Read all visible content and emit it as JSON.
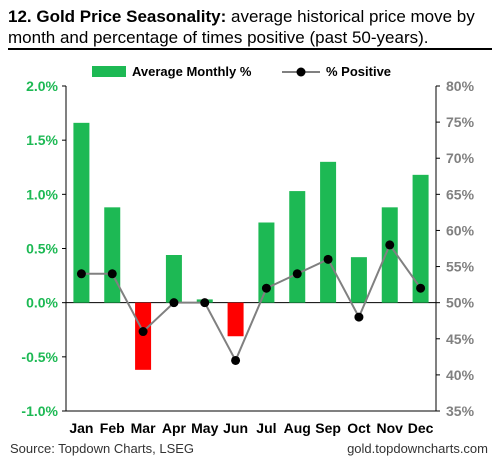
{
  "header": {
    "title_bold": "12. Gold Price Seasonality:",
    "title_rest": " average historical price move by month and percentage of times positive (past 50-years)."
  },
  "footer": {
    "source": "Source: Topdown Charts, LSEG",
    "website": "gold.topdowncharts.com"
  },
  "colors": {
    "positive_bar": "#1db954",
    "negative_bar": "#ff0000",
    "left_axis_text": "#1db954",
    "right_axis_text": "#808080",
    "line": "#808080",
    "marker": "#000000"
  },
  "chart_data": {
    "type": "bar",
    "categories": [
      "Jan",
      "Feb",
      "Mar",
      "Apr",
      "May",
      "Jun",
      "Jul",
      "Aug",
      "Sep",
      "Oct",
      "Nov",
      "Dec"
    ],
    "series": [
      {
        "name": "Average Monthly %",
        "type": "bar",
        "axis": "left",
        "values": [
          1.66,
          0.88,
          -0.62,
          0.44,
          0.03,
          -0.31,
          0.74,
          1.03,
          1.3,
          0.42,
          0.88,
          1.18
        ]
      },
      {
        "name": "% Positive",
        "type": "line",
        "axis": "right",
        "values": [
          54,
          54,
          46,
          50,
          50,
          42,
          52,
          54,
          56,
          48,
          58,
          52
        ]
      }
    ],
    "y_left": {
      "min": -1.0,
      "max": 2.0,
      "ticks": [
        "-1.0%",
        "-0.5%",
        "0.0%",
        "0.5%",
        "1.0%",
        "1.5%",
        "2.0%"
      ]
    },
    "y_right": {
      "min": 35,
      "max": 80,
      "ticks": [
        "35%",
        "40%",
        "45%",
        "50%",
        "55%",
        "60%",
        "65%",
        "70%",
        "75%",
        "80%"
      ]
    },
    "legend_position": "top",
    "grid": false
  }
}
